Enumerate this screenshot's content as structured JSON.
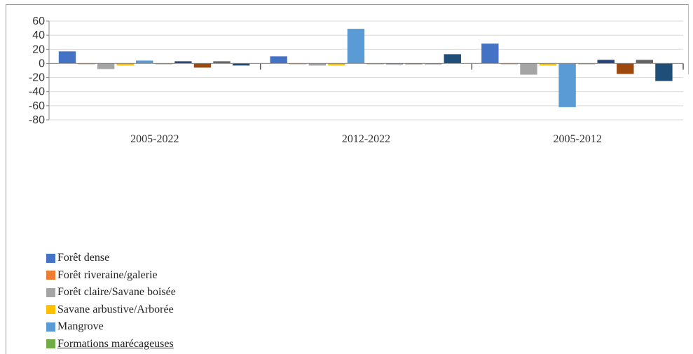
{
  "chart_data": {
    "type": "bar",
    "categories": [
      "2005-2022",
      "2012-2022",
      "2005-2012"
    ],
    "series": [
      {
        "name": "Forêt dense",
        "color": "#4472c4",
        "values": [
          17,
          10,
          28
        ]
      },
      {
        "name": "Forêt riveraine/galerie",
        "color": "#ed7d31",
        "values": [
          -1,
          -1,
          -1
        ]
      },
      {
        "name": "Forêt claire/Savane boisée",
        "color": "#a5a5a5",
        "values": [
          -8,
          -3,
          -16
        ]
      },
      {
        "name": "Savane arbustive/Arborée",
        "color": "#ffc000",
        "values": [
          -3,
          -3,
          -3
        ]
      },
      {
        "name": "Mangrove",
        "color": "#5b9bd5",
        "values": [
          4,
          49,
          -62
        ]
      },
      {
        "name": "Formations marécageuses",
        "color": "#70ad47",
        "values": [
          0,
          0,
          0
        ]
      },
      {
        "name": "",
        "color": "#264478",
        "values": [
          3,
          -1,
          5
        ]
      },
      {
        "name": "",
        "color": "#9e480e",
        "values": [
          -6,
          -1,
          -15
        ]
      },
      {
        "name": "",
        "color": "#636363",
        "values": [
          3,
          -1,
          5
        ]
      },
      {
        "name": "",
        "color": "#1f4e79",
        "values": [
          -3,
          13,
          -25
        ]
      }
    ],
    "yticks": [
      "60",
      "40",
      "20",
      "0",
      "-20",
      "-40",
      "-60",
      "-80"
    ],
    "ylim": [
      -80,
      60
    ],
    "grid": true,
    "legend_position": "bottom-left",
    "title": "",
    "xlabel": "",
    "ylabel": ""
  }
}
